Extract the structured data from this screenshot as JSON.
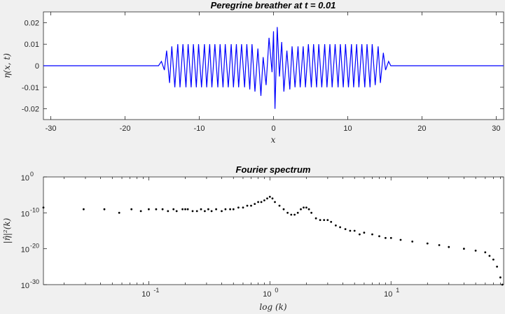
{
  "chart_data": [
    {
      "type": "line",
      "title": "Peregrine breather at t = 0.01",
      "xlabel": "x",
      "ylabel": "η(x, t)",
      "xlim": [
        -31,
        31
      ],
      "ylim": [
        -0.025,
        0.025
      ],
      "xticks": [
        -30,
        -20,
        -10,
        0,
        10,
        20,
        30
      ],
      "xtick_labels": [
        "-30",
        "-20",
        "-10",
        "0",
        "10",
        "20",
        "30"
      ],
      "yticks": [
        0.02,
        0.01,
        0,
        -0.01,
        -0.02
      ],
      "ytick_labels": [
        "0.02",
        "0.01",
        "0",
        "-0.01",
        "-0.02"
      ],
      "grid": false,
      "series": [
        {
          "color": "#0000ff",
          "description_of_shape": "carrier wave packet confined to |x|<15, amplitude about 0.01, centre peak +0.018 / -0.020 at x≈0",
          "points": [
            [
              -31,
              0
            ],
            [
              -15.5,
              0
            ],
            [
              -15.1,
              0.002
            ],
            [
              -14.7,
              -0.002
            ],
            [
              -14.4,
              0.007
            ],
            [
              -14.0,
              -0.008
            ],
            [
              -13.7,
              0.009
            ],
            [
              -13.3,
              -0.01
            ],
            [
              -12.9,
              0.01
            ],
            [
              -12.6,
              -0.01
            ],
            [
              -12.2,
              0.01
            ],
            [
              -11.8,
              -0.01
            ],
            [
              -11.5,
              0.01
            ],
            [
              -11.1,
              -0.01
            ],
            [
              -10.8,
              0.01
            ],
            [
              -10.4,
              -0.01
            ],
            [
              -10.1,
              0.01
            ],
            [
              -9.7,
              -0.01
            ],
            [
              -9.3,
              0.01
            ],
            [
              -9.0,
              -0.01
            ],
            [
              -8.6,
              0.01
            ],
            [
              -8.3,
              -0.01
            ],
            [
              -7.9,
              0.01
            ],
            [
              -7.5,
              -0.01
            ],
            [
              -7.2,
              0.01
            ],
            [
              -6.8,
              -0.01
            ],
            [
              -6.5,
              0.01
            ],
            [
              -6.1,
              -0.01
            ],
            [
              -5.7,
              0.01
            ],
            [
              -5.4,
              -0.01
            ],
            [
              -5.0,
              0.01
            ],
            [
              -4.7,
              -0.01
            ],
            [
              -4.3,
              0.01
            ],
            [
              -3.9,
              -0.01
            ],
            [
              -3.6,
              0.01
            ],
            [
              -3.2,
              -0.011
            ],
            [
              -2.9,
              0.01
            ],
            [
              -2.5,
              -0.012
            ],
            [
              -2.1,
              0.008
            ],
            [
              -1.7,
              -0.014
            ],
            [
              -1.4,
              0.004
            ],
            [
              -1.0,
              -0.009
            ],
            [
              -0.6,
              0.013
            ],
            [
              -0.2,
              -0.003
            ],
            [
              0.0,
              0.016
            ],
            [
              0.2,
              -0.02
            ],
            [
              0.5,
              0.018
            ],
            [
              0.8,
              -0.005
            ],
            [
              1.1,
              0.011
            ],
            [
              1.4,
              -0.012
            ],
            [
              1.8,
              0.007
            ],
            [
              2.2,
              -0.011
            ],
            [
              2.5,
              0.009
            ],
            [
              2.9,
              -0.01
            ],
            [
              3.3,
              0.009
            ],
            [
              3.6,
              -0.01
            ],
            [
              4.0,
              0.009
            ],
            [
              4.3,
              -0.01
            ],
            [
              4.7,
              0.01
            ],
            [
              5.1,
              -0.01
            ],
            [
              5.4,
              0.01
            ],
            [
              5.8,
              -0.01
            ],
            [
              6.1,
              0.01
            ],
            [
              6.5,
              -0.01
            ],
            [
              6.9,
              0.01
            ],
            [
              7.2,
              -0.01
            ],
            [
              7.6,
              0.01
            ],
            [
              7.9,
              -0.01
            ],
            [
              8.3,
              0.01
            ],
            [
              8.7,
              -0.01
            ],
            [
              9.0,
              0.01
            ],
            [
              9.4,
              -0.01
            ],
            [
              9.7,
              0.01
            ],
            [
              10.1,
              -0.01
            ],
            [
              10.5,
              0.01
            ],
            [
              10.8,
              -0.01
            ],
            [
              11.2,
              0.01
            ],
            [
              11.5,
              -0.01
            ],
            [
              11.9,
              0.01
            ],
            [
              12.3,
              -0.01
            ],
            [
              12.6,
              0.01
            ],
            [
              13.0,
              -0.01
            ],
            [
              13.3,
              0.01
            ],
            [
              13.7,
              -0.009
            ],
            [
              14.1,
              0.009
            ],
            [
              14.4,
              -0.008
            ],
            [
              14.8,
              0.006
            ],
            [
              15.1,
              -0.002
            ],
            [
              15.5,
              0.002
            ],
            [
              15.8,
              0
            ],
            [
              31,
              0
            ]
          ]
        }
      ]
    },
    {
      "type": "scatter",
      "title": "Fourier spectrum",
      "xlabel": "log (k)",
      "ylabel": "|η̂|²(k)",
      "xscale": "log",
      "yscale": "log",
      "xlim": [
        0.0135,
        85
      ],
      "ylim": [
        1e-30,
        1
      ],
      "xtick_labels": [
        {
          "mantissa": "10",
          "exp": "-1"
        },
        {
          "mantissa": "10",
          "exp": "0"
        },
        {
          "mantissa": "10",
          "exp": "1"
        }
      ],
      "ytick_labels": [
        {
          "mantissa": "10",
          "exp": "0"
        },
        {
          "mantissa": "10",
          "exp": "-10"
        },
        {
          "mantissa": "10",
          "exp": "-20"
        },
        {
          "mantissa": "10",
          "exp": "-30"
        }
      ],
      "grid": false,
      "marker_color": "#000000",
      "points": [
        [
          0.0135,
          3e-09
        ],
        [
          0.029,
          1e-09
        ],
        [
          0.043,
          1e-09
        ],
        [
          0.057,
          1e-10
        ],
        [
          0.072,
          1e-09
        ],
        [
          0.086,
          3e-10
        ],
        [
          0.1,
          1e-09
        ],
        [
          0.115,
          1e-09
        ],
        [
          0.13,
          1e-09
        ],
        [
          0.144,
          3e-10
        ],
        [
          0.16,
          1e-09
        ],
        [
          0.17,
          3e-10
        ],
        [
          0.19,
          1e-09
        ],
        [
          0.2,
          1e-09
        ],
        [
          0.21,
          1e-09
        ],
        [
          0.23,
          3e-10
        ],
        [
          0.25,
          3e-10
        ],
        [
          0.27,
          1e-09
        ],
        [
          0.29,
          3e-10
        ],
        [
          0.31,
          1e-09
        ],
        [
          0.33,
          3e-10
        ],
        [
          0.36,
          1e-09
        ],
        [
          0.4,
          3e-10
        ],
        [
          0.43,
          1e-09
        ],
        [
          0.47,
          1e-09
        ],
        [
          0.5,
          1e-09
        ],
        [
          0.55,
          3e-09
        ],
        [
          0.6,
          3e-09
        ],
        [
          0.65,
          1e-08
        ],
        [
          0.7,
          1e-08
        ],
        [
          0.75,
          3e-08
        ],
        [
          0.8,
          1e-07
        ],
        [
          0.85,
          1e-07
        ],
        [
          0.9,
          3e-07
        ],
        [
          0.95,
          1e-06
        ],
        [
          1.0,
          3e-06
        ],
        [
          1.05,
          1e-06
        ],
        [
          1.1,
          1e-07
        ],
        [
          1.2,
          1e-08
        ],
        [
          1.3,
          1e-09
        ],
        [
          1.4,
          1e-10
        ],
        [
          1.5,
          3e-11
        ],
        [
          1.6,
          3e-11
        ],
        [
          1.7,
          1e-10
        ],
        [
          1.8,
          1e-09
        ],
        [
          1.9,
          3e-09
        ],
        [
          2.0,
          3e-09
        ],
        [
          2.1,
          1e-09
        ],
        [
          2.2,
          1e-10
        ],
        [
          2.4,
          3e-12
        ],
        [
          2.6,
          1e-12
        ],
        [
          2.8,
          1e-12
        ],
        [
          3.0,
          1e-12
        ],
        [
          3.2,
          3e-13
        ],
        [
          3.5,
          3e-14
        ],
        [
          3.8,
          1e-14
        ],
        [
          4.2,
          3e-15
        ],
        [
          4.6,
          1e-15
        ],
        [
          5.0,
          1e-15
        ],
        [
          5.5,
          1e-16
        ],
        [
          6.0,
          3e-16
        ],
        [
          7.0,
          1e-16
        ],
        [
          8.0,
          3e-17
        ],
        [
          9.0,
          1e-17
        ],
        [
          10,
          1e-17
        ],
        [
          12,
          3e-18
        ],
        [
          15,
          1e-18
        ],
        [
          20,
          3e-19
        ],
        [
          25,
          1e-19
        ],
        [
          30,
          3e-20
        ],
        [
          40,
          1e-20
        ],
        [
          50,
          3e-21
        ],
        [
          60,
          1e-21
        ],
        [
          65,
          1e-22
        ],
        [
          70,
          1e-23
        ],
        [
          75,
          1e-25
        ],
        [
          80,
          1e-28
        ],
        [
          83,
          1e-30
        ]
      ]
    }
  ]
}
